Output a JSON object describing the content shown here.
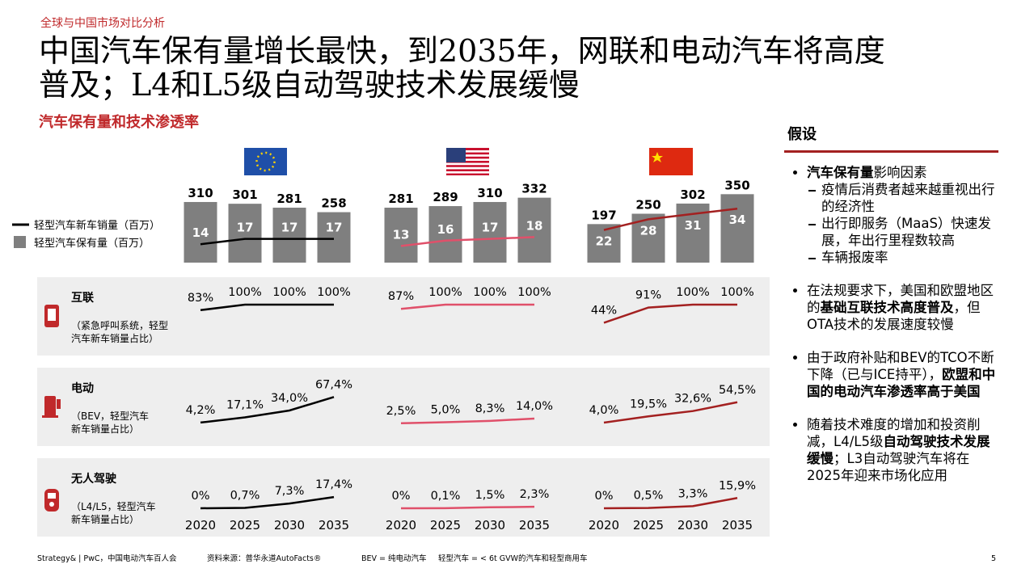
{
  "header": {
    "section": "全球与中国市场对比分析",
    "title_lines": [
      "中国汽车保有量增长最快，到2035年，网联和电动汽车将高度",
      "普及；L4和L5级自动驾驶技术发展缓慢"
    ],
    "subtitle": "汽车保有量和技术渗透率"
  },
  "chart": {
    "legend": {
      "sales": "轻型汽车新车销量（百万）",
      "stock": "轻型汽车保有量（百万）"
    },
    "bar_color": "#7f7f7f",
    "years": [
      2020,
      2025,
      2030,
      2035
    ],
    "regions": [
      {
        "color": "#000000",
        "stock": [
          310,
          301,
          281,
          258
        ],
        "sales": [
          14,
          17,
          17,
          17
        ]
      },
      {
        "color": "#e0506a",
        "stock": [
          281,
          289,
          310,
          332
        ],
        "sales": [
          13,
          16,
          17,
          18
        ]
      },
      {
        "color": "#a32020",
        "stock": [
          197,
          250,
          302,
          350
        ],
        "sales": [
          22,
          28,
          31,
          34
        ]
      }
    ]
  },
  "rows": [
    {
      "title": "互联",
      "desc": [
        "（紧急呼叫系统，轻型",
        "汽车新车销量占比）"
      ],
      "regions": [
        {
          "values": [
            83,
            100,
            100,
            100
          ],
          "value_labels": [
            "83%",
            "100%",
            "100%",
            "100%"
          ]
        },
        {
          "values": [
            87,
            100,
            100,
            100
          ],
          "value_labels": [
            "87%",
            "100%",
            "100%",
            "100%"
          ]
        },
        {
          "values": [
            44,
            91,
            100,
            100
          ],
          "value_labels": [
            "44%",
            "91%",
            "100%",
            "100%"
          ]
        }
      ]
    },
    {
      "title": "电动",
      "desc": [
        "（BEV，轻型汽车",
        "新车销量占比）"
      ],
      "regions": [
        {
          "values": [
            4.2,
            17.1,
            34.0,
            67.4
          ],
          "value_labels": [
            "4,2%",
            "17,1%",
            "34,0%",
            "67,4%"
          ]
        },
        {
          "values": [
            2.5,
            5.0,
            8.3,
            14.0
          ],
          "value_labels": [
            "2,5%",
            "5,0%",
            "8,3%",
            "14,0%"
          ]
        },
        {
          "values": [
            4.0,
            19.5,
            32.6,
            54.5
          ],
          "value_labels": [
            "4,0%",
            "19,5%",
            "32,6%",
            "54,5%"
          ]
        }
      ]
    },
    {
      "title": "无人驾驶",
      "desc": [
        "（L4/L5，轻型汽车",
        "新车销量占比）"
      ],
      "regions": [
        {
          "values": [
            0,
            0.7,
            7.3,
            17.4
          ],
          "value_labels": [
            "0%",
            "0,7%",
            "7,3%",
            "17,4%"
          ]
        },
        {
          "values": [
            0,
            0.1,
            1.5,
            2.3
          ],
          "value_labels": [
            "0%",
            "0,1%",
            "1,5%",
            "2,3%"
          ]
        },
        {
          "values": [
            0,
            0.5,
            3.3,
            15.9
          ],
          "value_labels": [
            "0%",
            "0,5%",
            "3,3%",
            "15,9%"
          ]
        }
      ]
    }
  ],
  "assumptions": {
    "title": "假设",
    "bullets": [
      {
        "runs": [
          {
            "text": "汽车保有量",
            "bold": true
          },
          {
            "text": "影响因素"
          }
        ],
        "sub": [
          "疫情后消费者越来越重视出行的经济性",
          "出行即服务（MaaS）快速发展，年出行里程数较高",
          "车辆报废率"
        ]
      },
      {
        "runs": [
          {
            "text": "在法规要求下，美国和欧盟地区的"
          },
          {
            "text": "基础互联技术高度普及",
            "bold": true
          },
          {
            "text": "，但OTA技术的发展速度较慢"
          }
        ]
      },
      {
        "runs": [
          {
            "text": "由于政府补贴和BEV的TCO不断下降（已与ICE持平），"
          },
          {
            "text": "欧盟和中国的电动汽车渗透率高于美国",
            "bold": true
          }
        ]
      },
      {
        "runs": [
          {
            "text": "随着技术难度的增加和投资削减，L4/L5级"
          },
          {
            "text": "自动驾驶技术发展缓慢",
            "bold": true
          },
          {
            "text": "；L3自动驾驶汽车将在2025年迎来市场化应用"
          }
        ]
      }
    ]
  },
  "footer": [
    "Strategy& | PwC，中国电动汽车百人会",
    "资料来源：普华永道AutoFacts®",
    "BEV = 纯电动汽车",
    "轻型汽车 = < 6t GVW的汽车和轻型商用车"
  ],
  "page": "5"
}
